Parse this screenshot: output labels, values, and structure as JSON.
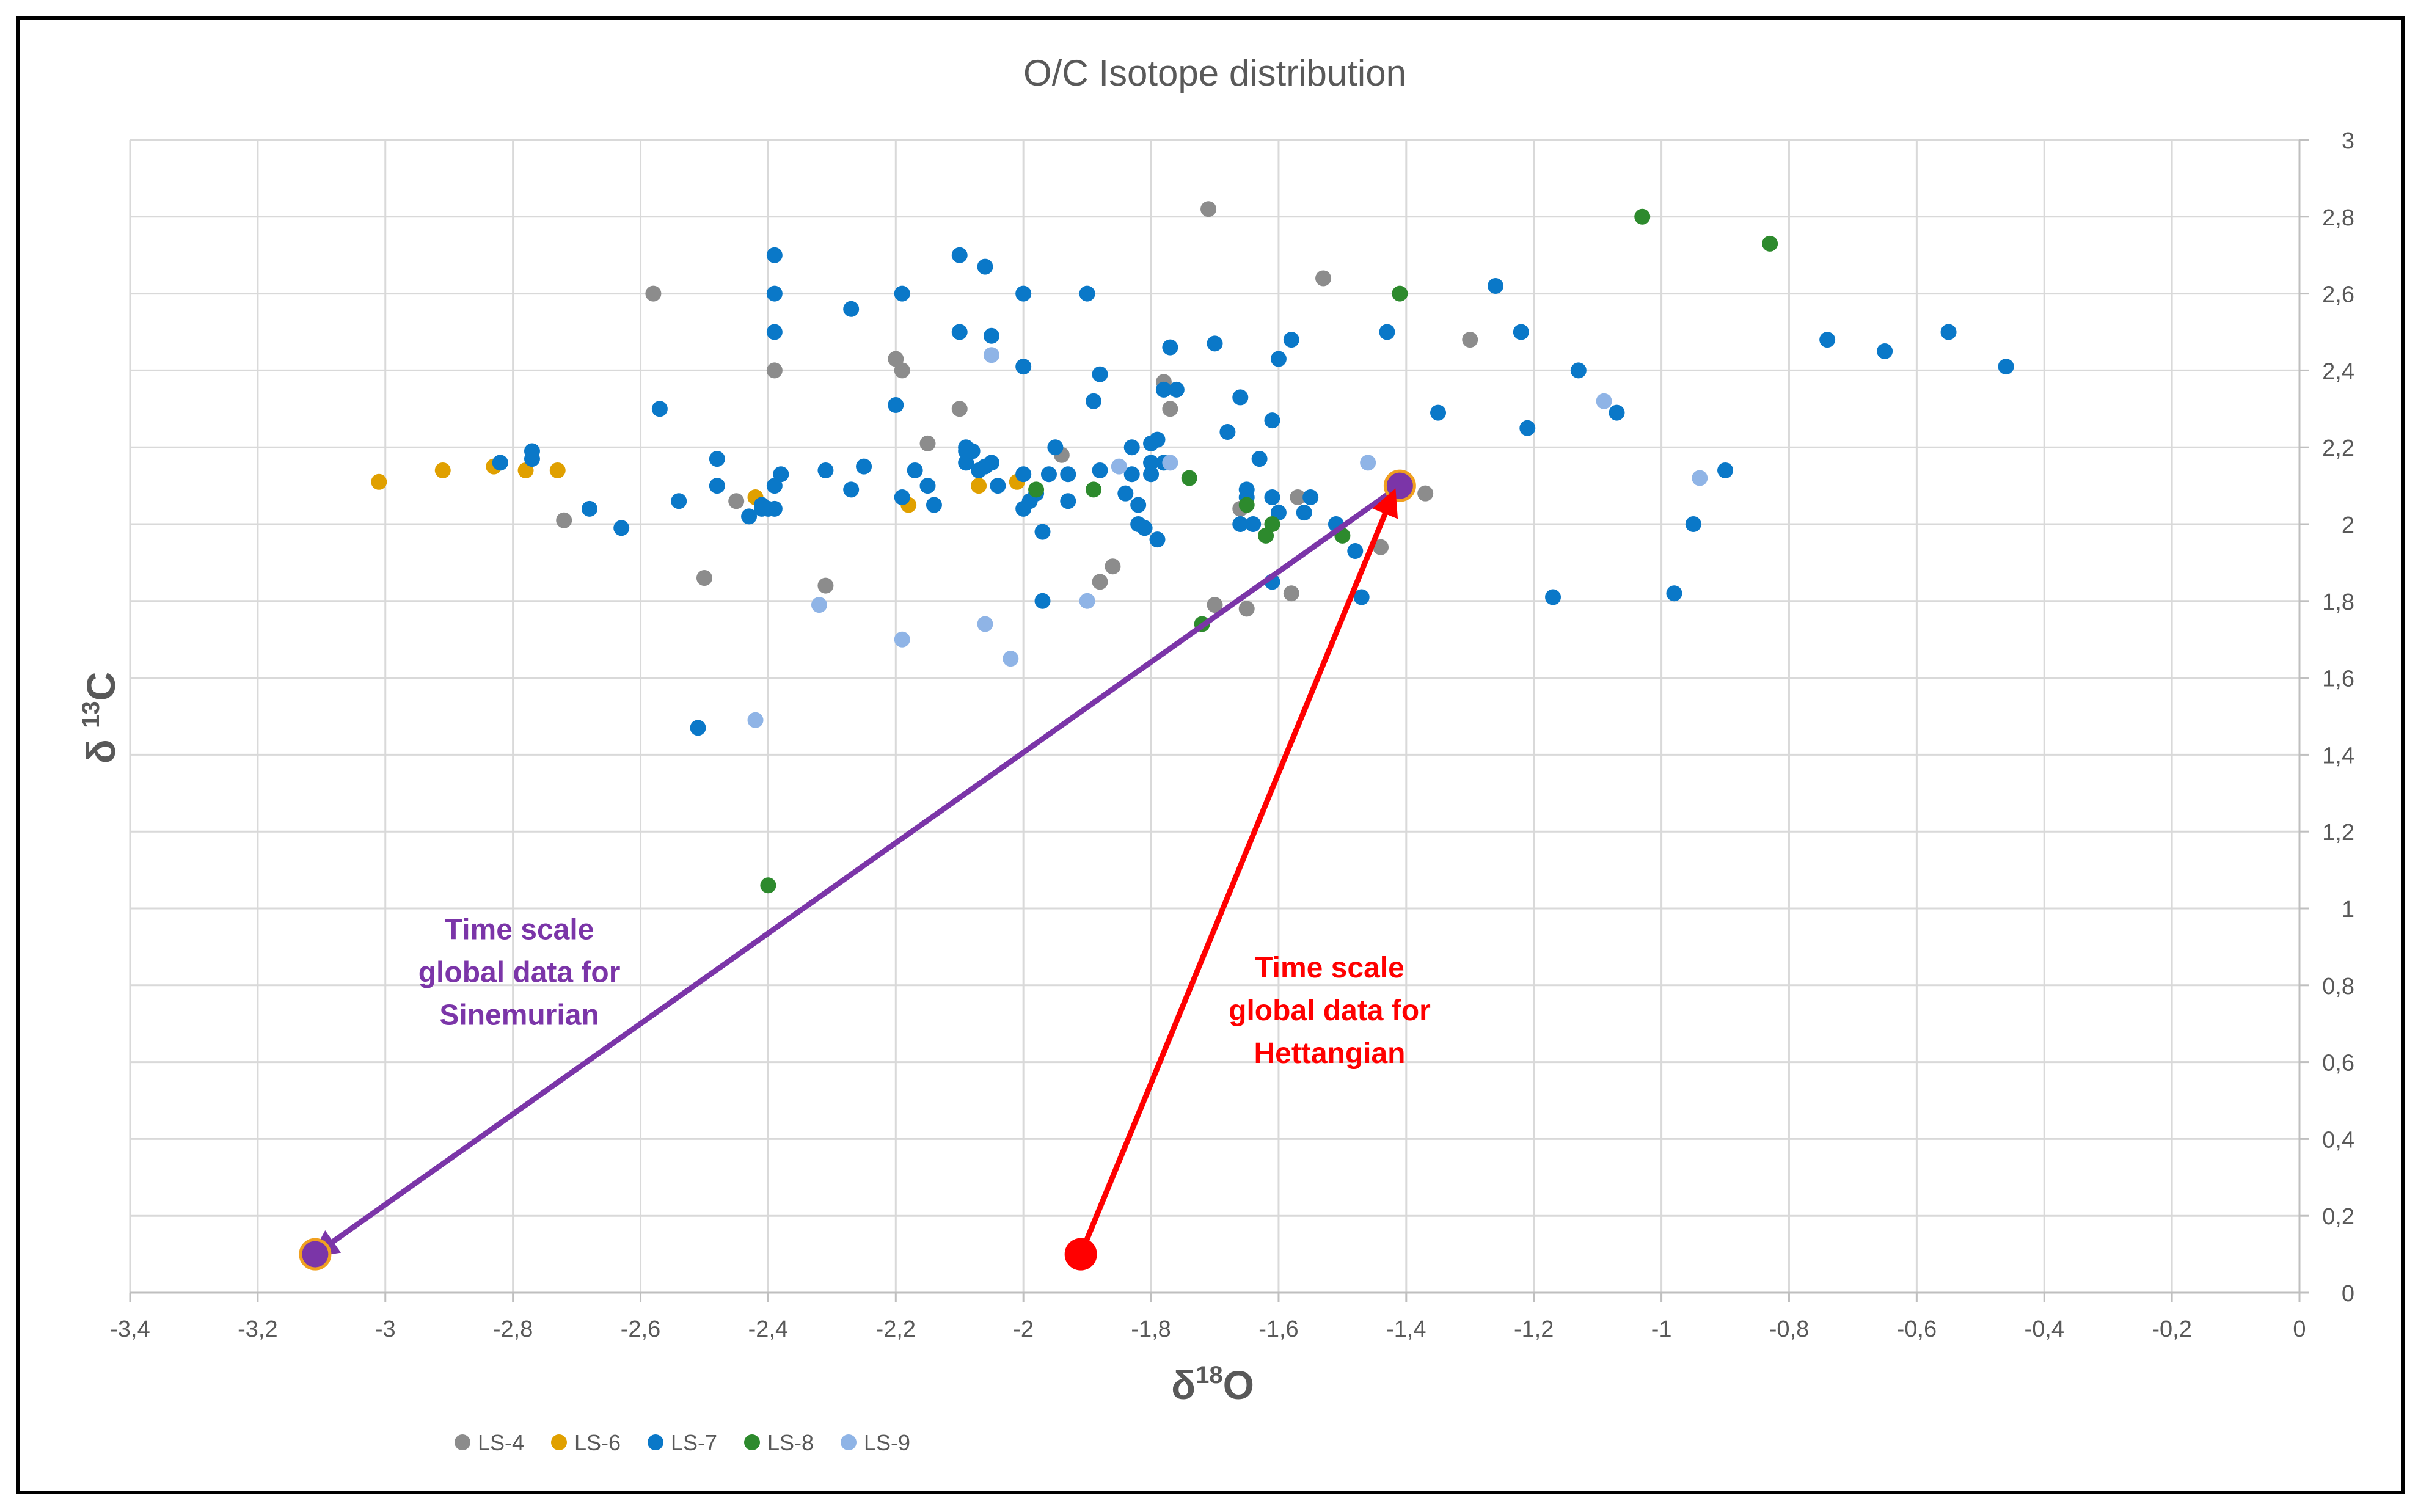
{
  "chart_data": {
    "type": "scatter",
    "title": "O/C Isotope distribution",
    "xlabel": {
      "symbol": "δ",
      "sup": "18",
      "element": "O"
    },
    "ylabel": {
      "symbol": "δ",
      "sup": "13",
      "element": "C"
    },
    "xlim": [
      -3.4,
      0
    ],
    "ylim": [
      0,
      3
    ],
    "x_ticks": [
      -3.4,
      -3.2,
      -3,
      -2.8,
      -2.6,
      -2.4,
      -2.2,
      -2,
      -1.8,
      -1.6,
      -1.4,
      -1.2,
      -1,
      -0.8,
      -0.6,
      -0.4,
      -0.2,
      0
    ],
    "x_tick_labels": [
      "-3,4",
      "-3,2",
      "-3",
      "-2,8",
      "-2,6",
      "-2,4",
      "-2,2",
      "-2",
      "-1,8",
      "-1,6",
      "-1,4",
      "-1,2",
      "-1",
      "-0,8",
      "-0,6",
      "-0,4",
      "-0,2",
      "0"
    ],
    "y_ticks": [
      0,
      0.2,
      0.4,
      0.6,
      0.8,
      1,
      1.2,
      1.4,
      1.6,
      1.8,
      2,
      2.2,
      2.4,
      2.6,
      2.8,
      3
    ],
    "y_tick_labels": [
      "0",
      "0,2",
      "0,4",
      "0,6",
      "0,8",
      "1",
      "1,2",
      "1,4",
      "1,6",
      "1,8",
      "2",
      "2,2",
      "2,4",
      "2,6",
      "2,8",
      "3"
    ],
    "grid": true,
    "legend_position": "bottom-left",
    "series": [
      {
        "name": "LS-4",
        "color": "#8c8c8c",
        "x": [
          -2.58,
          -2.39,
          -2.2,
          -2.19,
          -2.1,
          -2.15,
          -1.94,
          -1.78,
          -1.77,
          -1.71,
          -1.53,
          -1.3,
          -2.72,
          -2.5,
          -2.45,
          -2.31,
          -1.86,
          -1.88,
          -1.7,
          -1.65,
          -1.58,
          -1.44,
          -1.37,
          -1.66,
          -1.57
        ],
        "y": [
          2.6,
          2.4,
          2.43,
          2.4,
          2.3,
          2.21,
          2.18,
          2.37,
          2.3,
          2.82,
          2.64,
          2.48,
          2.01,
          1.86,
          2.06,
          1.84,
          1.89,
          1.85,
          1.79,
          1.78,
          1.82,
          1.94,
          2.08,
          2.04,
          2.07
        ]
      },
      {
        "name": "LS-6",
        "color": "#e0a000",
        "x": [
          -3.01,
          -2.91,
          -2.83,
          -2.78,
          -2.73,
          -2.42,
          -2.18,
          -2.07,
          -2.01,
          -1.41
        ],
        "y": [
          2.11,
          2.14,
          2.15,
          2.14,
          2.14,
          2.07,
          2.05,
          2.1,
          2.11,
          2.1
        ]
      },
      {
        "name": "LS-7",
        "color": "#0a78c8",
        "x": [
          -2.82,
          -2.77,
          -2.77,
          -2.68,
          -2.63,
          -2.57,
          -2.54,
          -2.48,
          -2.48,
          -2.43,
          -2.41,
          -2.4,
          -2.39,
          -2.38,
          -2.39,
          -2.39,
          -2.39,
          -2.39,
          -2.31,
          -2.27,
          -2.27,
          -2.25,
          -2.2,
          -2.19,
          -2.19,
          -2.17,
          -2.15,
          -2.14,
          -2.1,
          -2.1,
          -2.09,
          -2.09,
          -2.08,
          -2.07,
          -2.06,
          -2.05,
          -2.05,
          -2.04,
          -2.0,
          -2.0,
          -2.0,
          -1.99,
          -1.98,
          -1.97,
          -1.96,
          -1.95,
          -1.93,
          -1.93,
          -1.9,
          -1.89,
          -1.88,
          -1.88,
          -1.84,
          -1.83,
          -1.83,
          -1.82,
          -1.81,
          -1.8,
          -1.8,
          -1.79,
          -1.79,
          -1.78,
          -1.78,
          -1.77,
          -1.76,
          -1.7,
          -1.68,
          -1.66,
          -1.66,
          -1.65,
          -1.64,
          -1.63,
          -1.61,
          -1.61,
          -1.6,
          -1.6,
          -1.58,
          -1.56,
          -1.55,
          -1.51,
          -1.48,
          -1.43,
          -1.35,
          -1.26,
          -1.22,
          -1.21,
          -1.17,
          -1.13,
          -1.07,
          -0.98,
          -0.95,
          -0.9,
          -0.74,
          -0.65,
          -0.55,
          -0.46,
          -2.51,
          -2.41,
          -2.06,
          -2.09,
          -2.0,
          -1.97,
          -1.82,
          -1.8,
          -1.65,
          -1.61,
          -1.47
        ],
        "y": [
          2.16,
          2.17,
          2.19,
          2.04,
          1.99,
          2.3,
          2.06,
          2.17,
          2.1,
          2.02,
          2.04,
          2.04,
          2.7,
          2.13,
          2.6,
          2.5,
          2.1,
          2.04,
          2.14,
          2.09,
          2.56,
          2.15,
          2.31,
          2.6,
          2.07,
          2.14,
          2.1,
          2.05,
          2.7,
          2.5,
          2.2,
          2.16,
          2.19,
          2.14,
          2.67,
          2.49,
          2.16,
          2.1,
          2.6,
          2.41,
          2.04,
          2.06,
          2.08,
          1.98,
          2.13,
          2.2,
          2.13,
          2.06,
          2.6,
          2.32,
          2.39,
          2.14,
          2.08,
          2.13,
          2.2,
          2.0,
          1.99,
          2.13,
          2.21,
          2.22,
          1.96,
          2.35,
          2.16,
          2.46,
          2.35,
          2.47,
          2.24,
          2.33,
          2.0,
          2.09,
          2.0,
          2.17,
          2.27,
          2.07,
          2.03,
          2.43,
          2.48,
          2.03,
          2.07,
          2.0,
          1.93,
          2.5,
          2.29,
          2.62,
          2.5,
          2.25,
          1.81,
          2.4,
          2.29,
          1.82,
          2.0,
          2.14,
          2.48,
          2.45,
          2.5,
          2.41,
          1.47,
          2.05,
          2.15,
          2.19,
          2.13,
          1.8,
          2.05,
          2.16,
          2.07,
          1.85,
          1.81
        ]
      },
      {
        "name": "LS-8",
        "color": "#2d8a2d",
        "x": [
          -2.4,
          -1.98,
          -1.89,
          -1.74,
          -1.72,
          -1.65,
          -1.62,
          -1.61,
          -1.5,
          -1.41,
          -1.03,
          -0.83
        ],
        "y": [
          1.06,
          2.09,
          2.09,
          2.12,
          1.74,
          2.05,
          1.97,
          2.0,
          1.97,
          2.6,
          2.8,
          2.73
        ]
      },
      {
        "name": "LS-9",
        "color": "#8fb4e6",
        "x": [
          -2.42,
          -2.32,
          -2.19,
          -2.06,
          -2.05,
          -2.02,
          -1.9,
          -1.85,
          -1.77,
          -1.46,
          -1.09,
          -0.94
        ],
        "y": [
          1.49,
          1.79,
          1.7,
          1.74,
          2.44,
          1.65,
          1.8,
          2.15,
          2.16,
          2.16,
          2.32,
          2.12
        ]
      }
    ],
    "annotations": [
      {
        "name": "sinemurian-arrow",
        "color": "#7b35a8",
        "from": [
          -1.41,
          2.1
        ],
        "to": [
          -3.11,
          0.1
        ],
        "start_marker": {
          "x": -1.41,
          "y": 2.1,
          "fill": "#7b35a8",
          "stroke": "#f0a020"
        },
        "end_marker": {
          "x": -3.11,
          "y": 0.1,
          "fill": "#7b35a8",
          "stroke": "#f0a020"
        },
        "label_lines": [
          "Time scale",
          "global data for",
          "Sinemurian"
        ],
        "label_at": [
          -2.79,
          0.92
        ]
      },
      {
        "name": "hettangian-arrow",
        "color": "#ff0000",
        "from": [
          -1.91,
          0.1
        ],
        "to": [
          -1.42,
          2.08
        ],
        "start_marker": {
          "x": -1.91,
          "y": 0.1,
          "fill": "#ff0000",
          "stroke": "#ff0000"
        },
        "label_lines": [
          "Time scale",
          "global data for",
          "Hettangian"
        ],
        "label_at": [
          -1.52,
          0.82
        ]
      }
    ]
  }
}
